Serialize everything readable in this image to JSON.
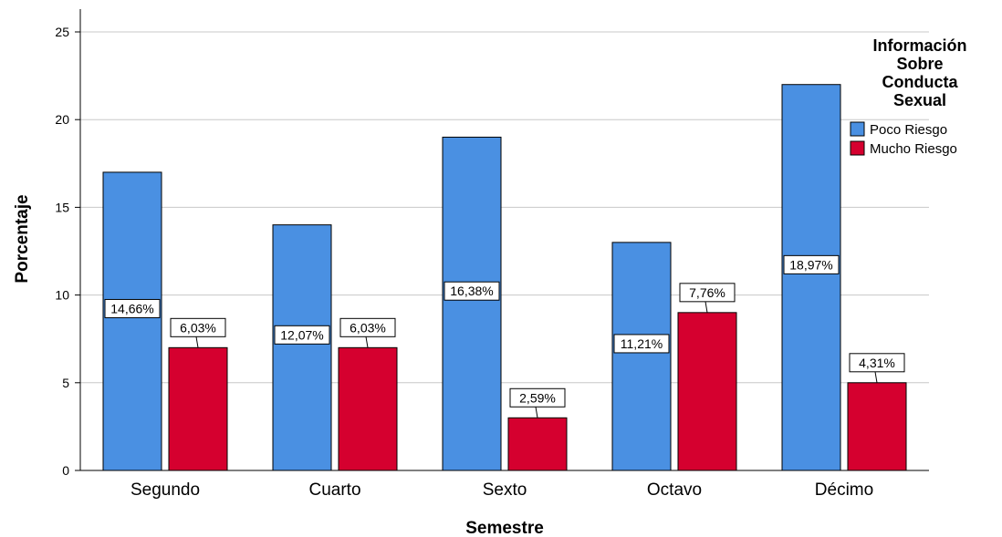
{
  "chart_data": {
    "type": "bar",
    "title": "",
    "xlabel": "Semestre",
    "ylabel": "Porcentaje",
    "ylim": [
      0,
      25
    ],
    "yticks": [
      "0",
      "5",
      "10",
      "15",
      "20",
      "25"
    ],
    "grid": true,
    "categories": [
      "Segundo",
      "Cuarto",
      "Sexto",
      "Octavo",
      "Décimo"
    ],
    "legend": {
      "title_lines": [
        "Información",
        "Sobre",
        "Conducta",
        "Sexual"
      ],
      "placement": "top-right"
    },
    "series": [
      {
        "name": "Poco Riesgo",
        "color": "#4a90e2",
        "values": [
          17,
          14,
          19,
          13,
          22
        ],
        "labels": [
          "14,66%",
          "12,07%",
          "16,38%",
          "11,21%",
          "18,97%"
        ]
      },
      {
        "name": "Mucho Riesgo",
        "color": "#d5002f",
        "values": [
          7,
          7,
          3,
          9,
          5
        ],
        "labels": [
          "6,03%",
          "6,03%",
          "2,59%",
          "7,76%",
          "4,31%"
        ]
      }
    ]
  }
}
